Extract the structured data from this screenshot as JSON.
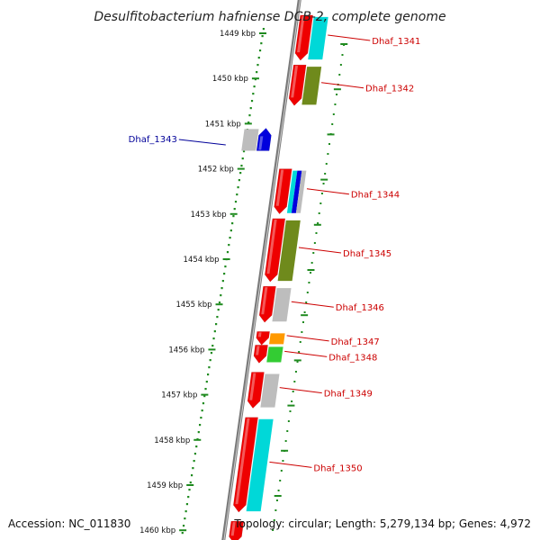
{
  "title": "Desulfitobacterium hafniense DCB-2, complete genome",
  "accession": "Accession: NC_011830",
  "topology": "Topology: circular; Length: 5,279,134 bp; Genes: 4,972",
  "colors": {
    "backbone": "#7a7a7a",
    "tick_dots": "#1f8a1f",
    "label_red": "#cc0000",
    "label_blue": "#000099",
    "gene_red": "#ee0000",
    "gene_cyan": "#00d8d8",
    "gene_olive": "#6f8a1c",
    "gene_gray": "#bdbdbd",
    "gene_blue": "#0000dd",
    "gene_orange": "#ff9900",
    "gene_green": "#33cc33"
  },
  "kbp_ticks": [
    "1449 kbp",
    "1450 kbp",
    "1451 kbp",
    "1452 kbp",
    "1453 kbp",
    "1454 kbp",
    "1455 kbp",
    "1456 kbp",
    "1457 kbp",
    "1458 kbp",
    "1459 kbp",
    "1460 kbp"
  ],
  "genes": [
    {
      "label": "Dhaf_1341",
      "strand": "+",
      "color": "red",
      "start_kbp": 1448.6,
      "end_kbp": 1449.6,
      "bands": [
        "cyan"
      ]
    },
    {
      "label": "Dhaf_1342",
      "strand": "+",
      "color": "red",
      "start_kbp": 1449.7,
      "end_kbp": 1450.6,
      "bands": [
        "olive"
      ]
    },
    {
      "label": "Dhaf_1343",
      "strand": "-",
      "color": "blue",
      "start_kbp": 1451.1,
      "end_kbp": 1451.6,
      "bands": [
        "gray"
      ]
    },
    {
      "label": "Dhaf_1344",
      "strand": "+",
      "color": "red",
      "start_kbp": 1452.0,
      "end_kbp": 1453.0,
      "bands": [
        "cyan",
        "blue",
        "gray"
      ]
    },
    {
      "label": "Dhaf_1345",
      "strand": "+",
      "color": "red",
      "start_kbp": 1453.1,
      "end_kbp": 1454.5,
      "bands": [
        "olive"
      ]
    },
    {
      "label": "Dhaf_1346",
      "strand": "+",
      "color": "red",
      "start_kbp": 1454.6,
      "end_kbp": 1455.4,
      "bands": [
        "gray"
      ]
    },
    {
      "label": "Dhaf_1347",
      "strand": "+",
      "color": "red",
      "start_kbp": 1455.6,
      "end_kbp": 1455.9,
      "bands": [
        "orange"
      ]
    },
    {
      "label": "Dhaf_1348",
      "strand": "+",
      "color": "red",
      "start_kbp": 1455.9,
      "end_kbp": 1456.3,
      "bands": [
        "green"
      ]
    },
    {
      "label": "Dhaf_1349",
      "strand": "+",
      "color": "red",
      "start_kbp": 1456.5,
      "end_kbp": 1457.3,
      "bands": [
        "gray"
      ]
    },
    {
      "label": "Dhaf_1350",
      "strand": "+",
      "color": "red",
      "start_kbp": 1457.5,
      "end_kbp": 1459.6,
      "bands": [
        "cyan"
      ]
    },
    {
      "label": "",
      "strand": "+",
      "color": "red",
      "start_kbp": 1459.8,
      "end_kbp": 1460.3,
      "bands": []
    }
  ]
}
